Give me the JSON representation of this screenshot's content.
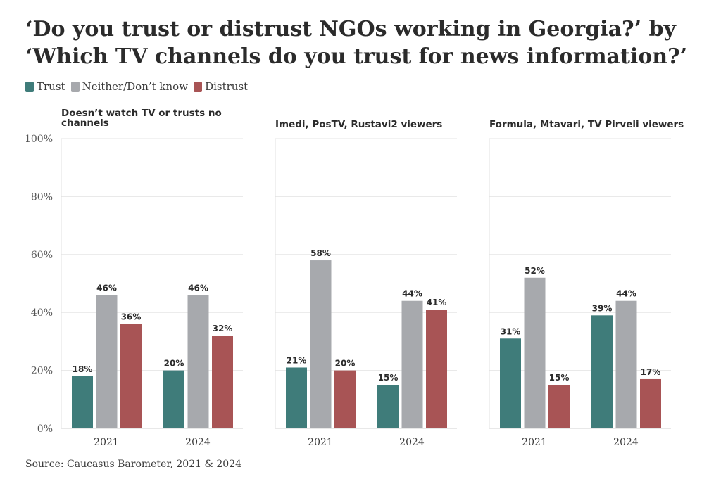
{
  "header": {
    "title": "‘Do you trust or distrust NGOs working in Georgia?’ by ‘Which TV channels do you trust for news information?’"
  },
  "footer": {
    "source": "Source: Caucasus Barometer, 2021 & 2024"
  },
  "legend": {
    "items": [
      {
        "label": "Trust",
        "color": "#3f7c7a"
      },
      {
        "label": "Neither/Don’t know",
        "color": "#a7a9ad"
      },
      {
        "label": "Distrust",
        "color": "#a85455"
      }
    ]
  },
  "chart_data": {
    "type": "bar",
    "ylim": [
      0,
      100
    ],
    "yticks": [
      "0%",
      "20%",
      "40%",
      "60%",
      "80%",
      "100%"
    ],
    "grid": true,
    "legend_position": "top-left",
    "categories": [
      "2021",
      "2024"
    ],
    "series_names": [
      "Trust",
      "Neither/Don’t know",
      "Distrust"
    ],
    "colors": [
      "#3f7c7a",
      "#a7a9ad",
      "#a85455"
    ],
    "panels": [
      {
        "title": "Doesn’t watch TV or trusts no channels",
        "title_lines": [
          "Doesn’t watch TV or trusts no",
          "channels"
        ],
        "values": [
          [
            18,
            46,
            36
          ],
          [
            20,
            46,
            32
          ]
        ]
      },
      {
        "title": "Imedi, PosTV, Rustavi2 viewers",
        "title_lines": [
          "Imedi, PosTV, Rustavi2 viewers"
        ],
        "values": [
          [
            21,
            58,
            20
          ],
          [
            15,
            44,
            41
          ]
        ]
      },
      {
        "title": "Formula, Mtavari, TV Pirveli viewers",
        "title_lines": [
          "Formula, Mtavari, TV Pirveli viewers"
        ],
        "values": [
          [
            31,
            52,
            15
          ],
          [
            39,
            44,
            17
          ]
        ]
      }
    ]
  }
}
